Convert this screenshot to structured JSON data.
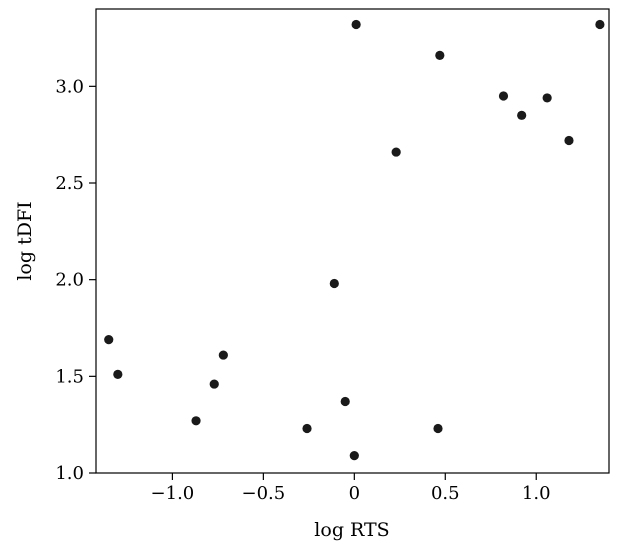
{
  "chart_data": {
    "type": "scatter",
    "title": "",
    "xlabel": "log RTS",
    "ylabel": "log tDFI",
    "xlim": [
      -1.42,
      1.4
    ],
    "ylim": [
      1.0,
      3.4
    ],
    "xticks": [
      -1.0,
      -0.5,
      0,
      0.5,
      1.0
    ],
    "xtick_labels": [
      "−1.0",
      "−0.5",
      "0",
      "0.5",
      "1.0"
    ],
    "yticks": [
      1.0,
      1.5,
      2.0,
      2.5,
      3.0
    ],
    "ytick_labels": [
      "1.0",
      "1.5",
      "2.0",
      "2.5",
      "3.0"
    ],
    "grid": false,
    "legend": "none",
    "marker_color": "#1a1a1a",
    "points": [
      {
        "x": -1.35,
        "y": 1.69
      },
      {
        "x": -1.3,
        "y": 1.51
      },
      {
        "x": -0.87,
        "y": 1.27
      },
      {
        "x": -0.77,
        "y": 1.46
      },
      {
        "x": -0.72,
        "y": 1.61
      },
      {
        "x": -0.26,
        "y": 1.23
      },
      {
        "x": -0.11,
        "y": 1.98
      },
      {
        "x": -0.05,
        "y": 1.37
      },
      {
        "x": 0.0,
        "y": 1.09
      },
      {
        "x": 0.01,
        "y": 3.32
      },
      {
        "x": 0.23,
        "y": 2.66
      },
      {
        "x": 0.46,
        "y": 1.23
      },
      {
        "x": 0.47,
        "y": 3.16
      },
      {
        "x": 0.82,
        "y": 2.95
      },
      {
        "x": 0.92,
        "y": 2.85
      },
      {
        "x": 1.06,
        "y": 2.94
      },
      {
        "x": 1.18,
        "y": 2.72
      },
      {
        "x": 1.35,
        "y": 3.32
      }
    ]
  }
}
